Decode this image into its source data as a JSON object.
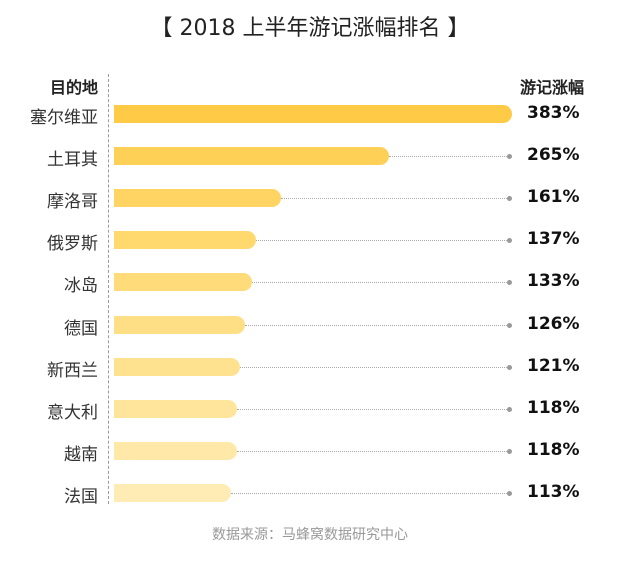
{
  "chart_data": {
    "type": "bar",
    "orientation": "horizontal",
    "title": "【 2018 上半年游记涨幅排名 】",
    "category_header": "目的地",
    "value_header": "游记涨幅",
    "categories": [
      "塞尔维亚",
      "土耳其",
      "摩洛哥",
      "俄罗斯",
      "冰岛",
      "德国",
      "新西兰",
      "意大利",
      "越南",
      "法国"
    ],
    "values": [
      383,
      265,
      161,
      137,
      133,
      126,
      121,
      118,
      118,
      113
    ],
    "value_labels": [
      "383%",
      "265%",
      "161%",
      "137%",
      "133%",
      "126%",
      "121%",
      "118%",
      "118%",
      "113%"
    ],
    "colors": [
      "#FFCA45",
      "#FFD056",
      "#FFD463",
      "#FFD86E",
      "#FFDB79",
      "#FFDF85",
      "#FFE290",
      "#FFE59C",
      "#FFE8A8",
      "#FFEBB4"
    ],
    "xlim": [
      0,
      383
    ],
    "source": "数据来源：马蜂窝数据研究中心"
  }
}
